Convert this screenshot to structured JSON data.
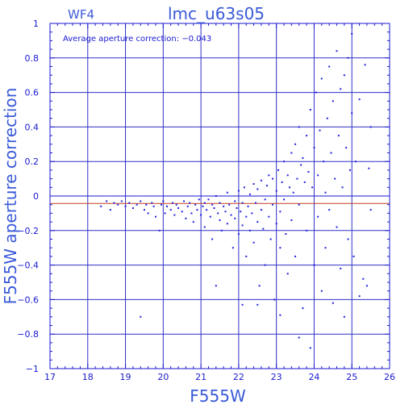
{
  "chart_data": {
    "type": "scatter",
    "title": "lmc_u63s05",
    "panel_label": "WF4",
    "annotation": "Average aperture correction: −0.043",
    "xlabel": "F555W",
    "ylabel": "F555W aperture correction",
    "xlim": [
      17,
      26
    ],
    "ylim": [
      -1,
      1
    ],
    "x_ticks": [
      17,
      18,
      19,
      20,
      21,
      22,
      23,
      24,
      25,
      26
    ],
    "y_ticks": [
      1,
      0.8,
      0.6,
      0.4,
      0.2,
      0,
      -0.2,
      -0.4,
      -0.6,
      -0.8,
      -1
    ],
    "x_tick_labels": [
      "17",
      "18",
      "19",
      "20",
      "21",
      "22",
      "23",
      "24",
      "25",
      "26"
    ],
    "y_tick_labels": [
      "1",
      "0.8",
      "0.6",
      "0.4",
      "0.2",
      "0",
      "−0.2",
      "−0.4",
      "−0.6",
      "−0.8",
      "−1"
    ],
    "grid": true,
    "reference_lines": [
      {
        "name": "zero",
        "y": 0,
        "color": "#1a1ad0"
      },
      {
        "name": "average",
        "y": -0.043,
        "color": "#c04020"
      }
    ],
    "colors": {
      "points": "#2020e0",
      "axes": "#1a1ad0",
      "grid": "#3030c8"
    },
    "points": [
      [
        18.35,
        -0.06
      ],
      [
        18.5,
        -0.03
      ],
      [
        18.6,
        -0.08
      ],
      [
        18.7,
        -0.04
      ],
      [
        18.8,
        -0.05
      ],
      [
        18.9,
        -0.03
      ],
      [
        19.0,
        -0.06
      ],
      [
        19.1,
        -0.04
      ],
      [
        19.2,
        -0.07
      ],
      [
        19.3,
        -0.05
      ],
      [
        19.4,
        -0.03
      ],
      [
        19.5,
        -0.08
      ],
      [
        19.55,
        -0.05
      ],
      [
        19.6,
        -0.1
      ],
      [
        19.7,
        -0.04
      ],
      [
        19.75,
        -0.06
      ],
      [
        19.8,
        -0.12
      ],
      [
        19.9,
        -0.2
      ],
      [
        19.95,
        -0.05
      ],
      [
        20.0,
        -0.03
      ],
      [
        20.05,
        -0.1
      ],
      [
        20.1,
        -0.06
      ],
      [
        20.2,
        -0.08
      ],
      [
        20.25,
        -0.04
      ],
      [
        20.3,
        -0.11
      ],
      [
        20.35,
        -0.05
      ],
      [
        20.4,
        -0.07
      ],
      [
        20.5,
        -0.09
      ],
      [
        20.55,
        -0.03
      ],
      [
        20.6,
        -0.13
      ],
      [
        20.65,
        -0.06
      ],
      [
        20.7,
        -0.04
      ],
      [
        20.75,
        -0.1
      ],
      [
        20.8,
        -0.15
      ],
      [
        20.85,
        -0.05
      ],
      [
        20.9,
        -0.08
      ],
      [
        20.95,
        -0.02
      ],
      [
        21.0,
        -0.11
      ],
      [
        21.05,
        -0.06
      ],
      [
        21.1,
        -0.04
      ],
      [
        21.1,
        -0.18
      ],
      [
        21.15,
        -0.08
      ],
      [
        21.2,
        -0.02
      ],
      [
        21.25,
        -0.12
      ],
      [
        21.3,
        -0.05
      ],
      [
        21.3,
        -0.25
      ],
      [
        21.35,
        -0.07
      ],
      [
        21.4,
        0.0
      ],
      [
        21.45,
        -0.1
      ],
      [
        21.5,
        -0.14
      ],
      [
        21.5,
        -0.04
      ],
      [
        21.55,
        -0.2
      ],
      [
        21.6,
        -0.06
      ],
      [
        21.65,
        -0.09
      ],
      [
        21.7,
        0.02
      ],
      [
        21.7,
        -0.16
      ],
      [
        21.75,
        -0.05
      ],
      [
        21.8,
        -0.11
      ],
      [
        21.85,
        -0.3
      ],
      [
        21.9,
        -0.03
      ],
      [
        21.9,
        -0.13
      ],
      [
        21.95,
        -0.07
      ],
      [
        22.0,
        0.03
      ],
      [
        22.0,
        -0.22
      ],
      [
        22.05,
        -0.09
      ],
      [
        22.1,
        -0.04
      ],
      [
        22.1,
        -0.17
      ],
      [
        22.15,
        0.05
      ],
      [
        22.2,
        -0.12
      ],
      [
        22.2,
        -0.35
      ],
      [
        22.25,
        -0.06
      ],
      [
        22.3,
        0.01
      ],
      [
        22.3,
        -0.2
      ],
      [
        22.35,
        -0.1
      ],
      [
        22.4,
        0.07
      ],
      [
        22.4,
        -0.27
      ],
      [
        22.45,
        -0.04
      ],
      [
        22.5,
        -0.15
      ],
      [
        22.5,
        0.04
      ],
      [
        22.55,
        -0.52
      ],
      [
        22.6,
        -0.08
      ],
      [
        22.6,
        0.09
      ],
      [
        22.65,
        -0.19
      ],
      [
        22.7,
        -0.02
      ],
      [
        22.7,
        -0.4
      ],
      [
        22.75,
        0.06
      ],
      [
        22.8,
        -0.12
      ],
      [
        22.8,
        0.12
      ],
      [
        22.85,
        -0.25
      ],
      [
        22.9,
        -0.05
      ],
      [
        22.9,
        0.1
      ],
      [
        22.95,
        -0.6
      ],
      [
        23.0,
        0.03
      ],
      [
        23.0,
        -0.16
      ],
      [
        23.05,
        0.15
      ],
      [
        23.1,
        -0.09
      ],
      [
        23.1,
        -0.3
      ],
      [
        23.15,
        0.08
      ],
      [
        23.2,
        -0.02
      ],
      [
        23.2,
        0.2
      ],
      [
        23.25,
        -0.22
      ],
      [
        23.3,
        0.12
      ],
      [
        23.3,
        -0.45
      ],
      [
        23.35,
        0.05
      ],
      [
        23.4,
        0.25
      ],
      [
        23.4,
        -0.14
      ],
      [
        23.45,
        0.02
      ],
      [
        23.5,
        0.3
      ],
      [
        23.5,
        -0.35
      ],
      [
        23.55,
        0.1
      ],
      [
        23.6,
        0.4
      ],
      [
        23.6,
        -0.05
      ],
      [
        23.65,
        0.18
      ],
      [
        23.7,
        -0.65
      ],
      [
        23.7,
        0.22
      ],
      [
        23.75,
        0.08
      ],
      [
        23.8,
        0.35
      ],
      [
        23.8,
        -0.2
      ],
      [
        23.85,
        0.14
      ],
      [
        23.9,
        0.5
      ],
      [
        23.9,
        -0.88
      ],
      [
        23.95,
        0.05
      ],
      [
        24.0,
        0.28
      ],
      [
        24.0,
        -0.4
      ],
      [
        24.05,
        0.6
      ],
      [
        24.1,
        0.12
      ],
      [
        24.1,
        -0.12
      ],
      [
        24.15,
        0.38
      ],
      [
        24.2,
        0.68
      ],
      [
        24.2,
        -0.55
      ],
      [
        24.25,
        0.2
      ],
      [
        24.3,
        0.02
      ],
      [
        24.3,
        -0.3
      ],
      [
        24.35,
        0.45
      ],
      [
        24.4,
        0.75
      ],
      [
        24.4,
        -0.08
      ],
      [
        24.45,
        0.25
      ],
      [
        24.5,
        0.55
      ],
      [
        24.5,
        -0.62
      ],
      [
        24.55,
        0.1
      ],
      [
        24.6,
        0.84
      ],
      [
        24.6,
        -0.18
      ],
      [
        24.65,
        0.35
      ],
      [
        24.7,
        0.62
      ],
      [
        24.7,
        -0.42
      ],
      [
        24.75,
        0.05
      ],
      [
        24.8,
        0.7
      ],
      [
        24.8,
        -0.7
      ],
      [
        24.85,
        0.28
      ],
      [
        24.9,
        0.8
      ],
      [
        24.9,
        -0.25
      ],
      [
        24.95,
        0.15
      ],
      [
        25.0,
        0.94
      ],
      [
        25.0,
        0.48
      ],
      [
        25.05,
        -0.35
      ],
      [
        25.1,
        0.2
      ],
      [
        25.2,
        0.56
      ],
      [
        25.2,
        -0.58
      ],
      [
        25.3,
        -0.48
      ],
      [
        25.35,
        0.76
      ],
      [
        25.4,
        -0.52
      ],
      [
        25.45,
        0.16
      ],
      [
        25.5,
        0.4
      ],
      [
        25.5,
        -0.08
      ],
      [
        19.4,
        -0.7
      ],
      [
        21.4,
        -0.52
      ],
      [
        22.1,
        -0.63
      ],
      [
        22.5,
        -0.63
      ],
      [
        23.1,
        -0.69
      ],
      [
        23.6,
        -0.82
      ]
    ]
  }
}
